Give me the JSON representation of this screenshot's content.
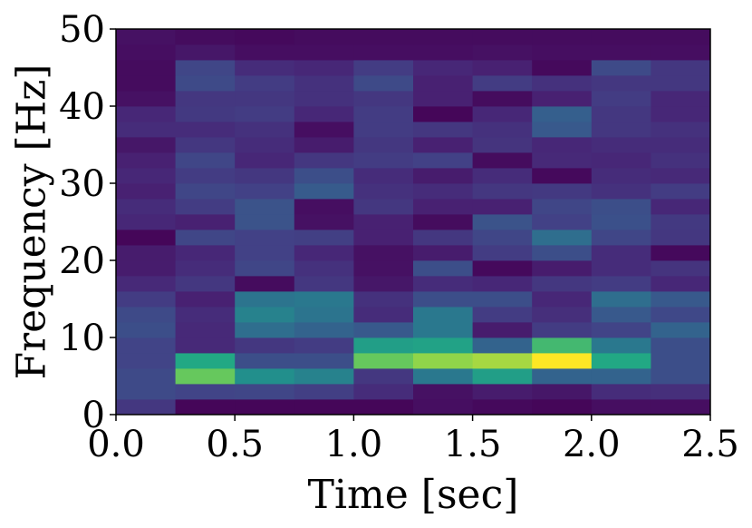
{
  "chart_data": {
    "type": "heatmap",
    "title": "",
    "xlabel": "Time [sec]",
    "ylabel": "Frequency [Hz]",
    "xlim": [
      0.0,
      2.5
    ],
    "ylim": [
      0,
      50
    ],
    "x_ticks": [
      "0.0",
      "0.5",
      "1.0",
      "1.5",
      "2.0",
      "2.5"
    ],
    "y_ticks": [
      "0",
      "10",
      "20",
      "30",
      "40",
      "50"
    ],
    "colormap": "viridis",
    "value_range": [
      0,
      1
    ],
    "time_bins": [
      0.125,
      0.375,
      0.625,
      0.875,
      1.125,
      1.375,
      1.625,
      1.875,
      2.125,
      2.375
    ],
    "frequency_bins": [
      1,
      3,
      5,
      7,
      9,
      11,
      13,
      15,
      17,
      19,
      21,
      23,
      25,
      27,
      29,
      31,
      33,
      35,
      37,
      39,
      41,
      43,
      45,
      47,
      49
    ],
    "values": [
      [
        0.2,
        0.02,
        0.02,
        0.02,
        0.02,
        0.05,
        0.03,
        0.02,
        0.05,
        0.05
      ],
      [
        0.28,
        0.25,
        0.26,
        0.23,
        0.16,
        0.06,
        0.1,
        0.08,
        0.16,
        0.17
      ],
      [
        0.28,
        0.85,
        0.62,
        0.55,
        0.2,
        0.5,
        0.7,
        0.4,
        0.4,
        0.3
      ],
      [
        0.25,
        0.75,
        0.3,
        0.3,
        0.85,
        0.9,
        0.92,
        1.0,
        0.75,
        0.3
      ],
      [
        0.25,
        0.15,
        0.2,
        0.22,
        0.7,
        0.72,
        0.4,
        0.8,
        0.5,
        0.3
      ],
      [
        0.3,
        0.15,
        0.45,
        0.4,
        0.35,
        0.5,
        0.1,
        0.22,
        0.25,
        0.4
      ],
      [
        0.28,
        0.16,
        0.55,
        0.48,
        0.16,
        0.5,
        0.22,
        0.17,
        0.35,
        0.27
      ],
      [
        0.22,
        0.12,
        0.48,
        0.5,
        0.18,
        0.3,
        0.3,
        0.14,
        0.45,
        0.35
      ],
      [
        0.15,
        0.2,
        0.04,
        0.2,
        0.08,
        0.16,
        0.14,
        0.2,
        0.22,
        0.14
      ],
      [
        0.1,
        0.16,
        0.26,
        0.18,
        0.06,
        0.3,
        0.03,
        0.1,
        0.16,
        0.19
      ],
      [
        0.1,
        0.14,
        0.24,
        0.14,
        0.06,
        0.1,
        0.22,
        0.3,
        0.16,
        0.03
      ],
      [
        0.02,
        0.26,
        0.24,
        0.23,
        0.12,
        0.2,
        0.26,
        0.45,
        0.26,
        0.2
      ],
      [
        0.14,
        0.12,
        0.32,
        0.06,
        0.12,
        0.04,
        0.32,
        0.24,
        0.31,
        0.21
      ],
      [
        0.16,
        0.22,
        0.32,
        0.05,
        0.2,
        0.12,
        0.12,
        0.26,
        0.3,
        0.14
      ],
      [
        0.12,
        0.26,
        0.24,
        0.36,
        0.18,
        0.16,
        0.2,
        0.21,
        0.18,
        0.22
      ],
      [
        0.14,
        0.22,
        0.2,
        0.3,
        0.16,
        0.1,
        0.16,
        0.03,
        0.16,
        0.15
      ],
      [
        0.12,
        0.26,
        0.14,
        0.2,
        0.22,
        0.24,
        0.04,
        0.15,
        0.14,
        0.18
      ],
      [
        0.08,
        0.2,
        0.16,
        0.1,
        0.2,
        0.12,
        0.19,
        0.14,
        0.16,
        0.16
      ],
      [
        0.16,
        0.16,
        0.18,
        0.05,
        0.22,
        0.2,
        0.18,
        0.35,
        0.2,
        0.18
      ],
      [
        0.14,
        0.21,
        0.22,
        0.14,
        0.22,
        0.02,
        0.14,
        0.38,
        0.2,
        0.14
      ],
      [
        0.06,
        0.2,
        0.2,
        0.18,
        0.2,
        0.12,
        0.04,
        0.12,
        0.22,
        0.14
      ],
      [
        0.04,
        0.28,
        0.22,
        0.18,
        0.28,
        0.12,
        0.22,
        0.18,
        0.2,
        0.2
      ],
      [
        0.04,
        0.26,
        0.16,
        0.14,
        0.22,
        0.14,
        0.12,
        0.03,
        0.28,
        0.2
      ],
      [
        0.05,
        0.08,
        0.05,
        0.05,
        0.05,
        0.05,
        0.06,
        0.05,
        0.05,
        0.05
      ],
      [
        0.06,
        0.04,
        0.03,
        0.04,
        0.04,
        0.04,
        0.04,
        0.04,
        0.04,
        0.04
      ]
    ]
  }
}
